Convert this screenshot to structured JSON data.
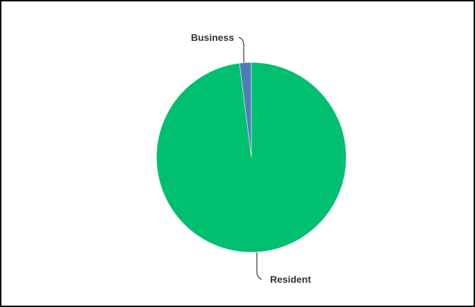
{
  "chart_data": {
    "type": "pie",
    "categories": [
      "Business",
      "Resident"
    ],
    "values": [
      2,
      98
    ],
    "colors": [
      "#507cb6",
      "#00bf6f"
    ],
    "title": "",
    "legend": "none",
    "labels": {
      "business": "Business",
      "resident": "Resident"
    }
  }
}
